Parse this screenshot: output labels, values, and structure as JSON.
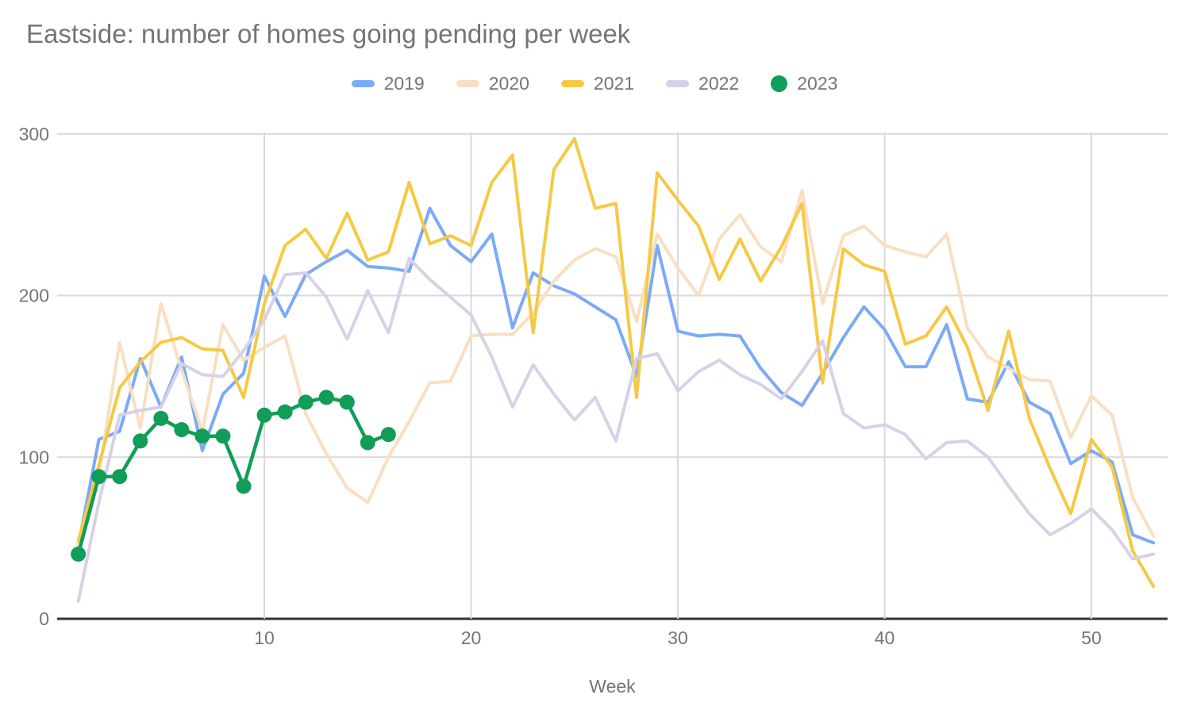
{
  "title": "Eastside: number of homes going pending per week",
  "x_axis": {
    "label": "Week",
    "ticks": [
      10,
      20,
      30,
      40,
      50
    ]
  },
  "y_axis": {
    "ticks": [
      0,
      100,
      200,
      300
    ]
  },
  "colors": {
    "background": "#ffffff",
    "gridline": "#d9d9d9",
    "axis_line": "#333333",
    "text_gray": "#757575"
  },
  "chart_data": {
    "type": "line",
    "title": "Eastside: number of homes going pending per week",
    "xlabel": "Week",
    "ylabel": "",
    "xlim": [
      1,
      53
    ],
    "ylim": [
      0,
      300
    ],
    "grid": true,
    "legend_position": "top",
    "x_weeks": [
      1,
      2,
      3,
      4,
      5,
      6,
      7,
      8,
      9,
      10,
      11,
      12,
      13,
      14,
      15,
      16,
      17,
      18,
      19,
      20,
      21,
      22,
      23,
      24,
      25,
      26,
      27,
      28,
      29,
      30,
      31,
      32,
      33,
      34,
      35,
      36,
      37,
      38,
      39,
      40,
      41,
      42,
      43,
      44,
      45,
      46,
      47,
      48,
      49,
      50,
      51,
      52,
      53
    ],
    "series": [
      {
        "name": "2019",
        "color": "#7BAAF7",
        "marker": false,
        "values": [
          45,
          111,
          116,
          161,
          131,
          162,
          104,
          139,
          152,
          212,
          187,
          213,
          221,
          228,
          218,
          217,
          215,
          254,
          231,
          221,
          238,
          180,
          214,
          206,
          201,
          193,
          185,
          150,
          231,
          178,
          175,
          176,
          175,
          155,
          140,
          132,
          152,
          174,
          193,
          179,
          156,
          156,
          182,
          136,
          134,
          159,
          134,
          127,
          96,
          104,
          97,
          52,
          47
        ]
      },
      {
        "name": "2020",
        "color": "#F9DFC2",
        "marker": false,
        "values": [
          45,
          90,
          171,
          118,
          195,
          154,
          116,
          182,
          160,
          168,
          175,
          127,
          102,
          81,
          72,
          100,
          122,
          146,
          147,
          175,
          176,
          176,
          189,
          209,
          222,
          229,
          224,
          184,
          238,
          217,
          200,
          235,
          250,
          230,
          221,
          265,
          195,
          237,
          243,
          231,
          227,
          224,
          238,
          180,
          162,
          155,
          148,
          147,
          112,
          138,
          126,
          75,
          51
        ]
      },
      {
        "name": "2021",
        "color": "#F6C945",
        "marker": false,
        "values": [
          48,
          95,
          143,
          159,
          171,
          174,
          167,
          166,
          137,
          195,
          231,
          241,
          223,
          251,
          222,
          227,
          270,
          232,
          237,
          231,
          270,
          287,
          177,
          278,
          297,
          254,
          257,
          137,
          276,
          259,
          243,
          210,
          235,
          209,
          230,
          257,
          146,
          229,
          219,
          215,
          170,
          175,
          193,
          168,
          129,
          178,
          124,
          93,
          65,
          111,
          94,
          42,
          20
        ]
      },
      {
        "name": "2022",
        "color": "#D7D1E8",
        "marker": false,
        "values": [
          11,
          72,
          126,
          129,
          131,
          158,
          151,
          150,
          166,
          185,
          213,
          214,
          199,
          173,
          203,
          177,
          223,
          210,
          199,
          188,
          162,
          131,
          157,
          139,
          123,
          137,
          110,
          161,
          164,
          141,
          153,
          160,
          151,
          145,
          136,
          153,
          172,
          127,
          118,
          120,
          114,
          99,
          109,
          110,
          100,
          82,
          65,
          52,
          59,
          68,
          55,
          37,
          40
        ]
      },
      {
        "name": "2023",
        "color": "#0F9D58",
        "marker": true,
        "values": [
          40,
          88,
          88,
          110,
          124,
          117,
          113,
          113,
          82,
          126,
          128,
          134,
          137,
          134,
          109,
          114,
          null,
          null,
          null,
          null,
          null,
          null,
          null,
          null,
          null,
          null,
          null,
          null,
          null,
          null,
          null,
          null,
          null,
          null,
          null,
          null,
          null,
          null,
          null,
          null,
          null,
          null,
          null,
          null,
          null,
          null,
          null,
          null,
          null,
          null,
          null,
          null,
          null
        ]
      }
    ]
  }
}
